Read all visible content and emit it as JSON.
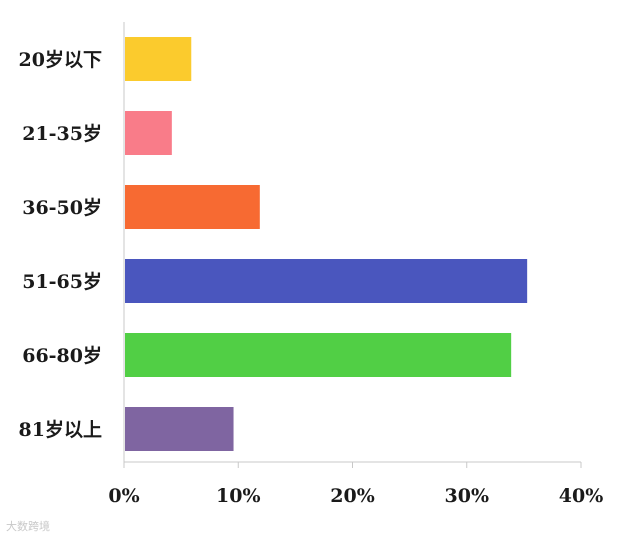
{
  "chart_data": {
    "type": "bar",
    "orientation": "horizontal",
    "categories": [
      "20岁以下",
      "21-35岁",
      "36-50岁",
      "51-65岁",
      "66-80岁",
      "81岁以上"
    ],
    "values": [
      5.8,
      4.1,
      11.8,
      35.2,
      33.8,
      9.5
    ],
    "colors": [
      "#FBCB2D",
      "#F97C89",
      "#F76A32",
      "#4A56BE",
      "#51CF45",
      "#7F65A1"
    ],
    "xlim": [
      0,
      40
    ],
    "xticks": [
      0,
      10,
      20,
      30,
      40
    ],
    "xtick_labels": [
      "0%",
      "10%",
      "20%",
      "30%",
      "40%"
    ],
    "title": "",
    "xlabel": "",
    "ylabel": "",
    "grid": false,
    "legend": "none"
  },
  "watermark": "大数跨境"
}
